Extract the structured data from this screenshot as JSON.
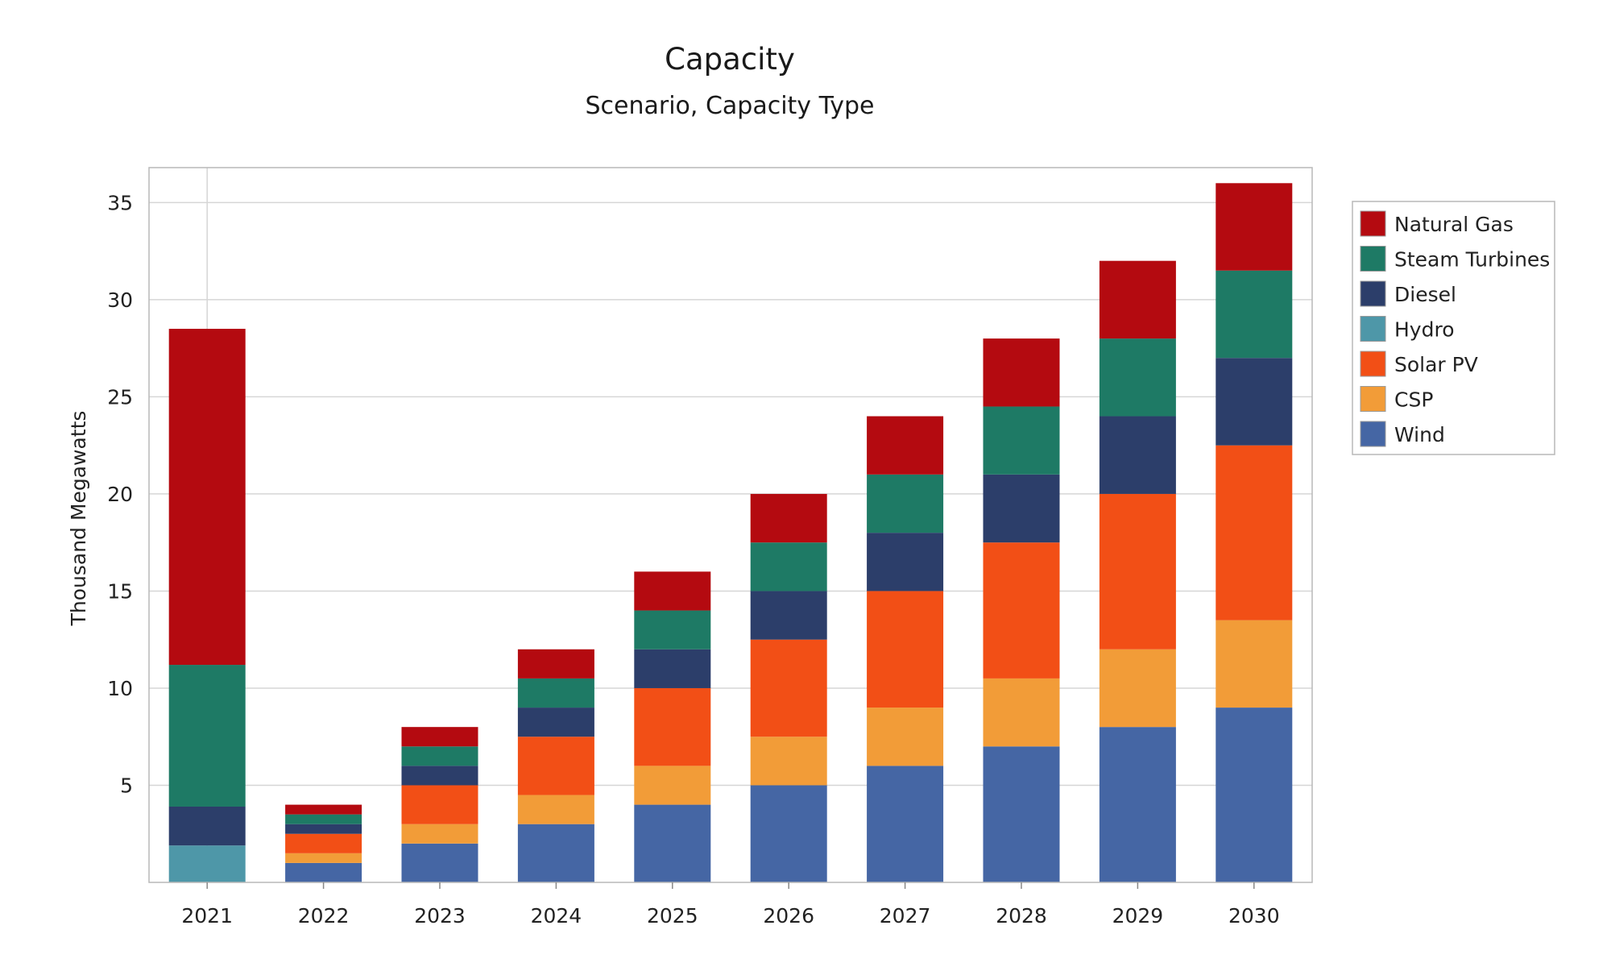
{
  "chart_data": {
    "type": "bar",
    "stacked": true,
    "title": "Capacity",
    "subtitle": "Scenario, Capacity Type",
    "xlabel": "",
    "ylabel": "Thousand Megawatts",
    "ylim": [
      0,
      36.8
    ],
    "yticks": [
      5,
      10,
      15,
      20,
      25,
      30,
      35
    ],
    "grid": true,
    "legend_position": "right",
    "categories": [
      "2021",
      "2022",
      "2023",
      "2024",
      "2025",
      "2026",
      "2027",
      "2028",
      "2029",
      "2030"
    ],
    "series": [
      {
        "name": "Wind",
        "color": "#4566a4",
        "values": [
          0,
          1,
          2,
          3,
          4,
          5,
          6,
          7,
          8,
          9
        ]
      },
      {
        "name": "CSP",
        "color": "#f29c38",
        "values": [
          0,
          0.5,
          1,
          1.5,
          2,
          2.5,
          3,
          3.5,
          4,
          4.5
        ]
      },
      {
        "name": "Solar PV",
        "color": "#f24f16",
        "values": [
          0,
          1,
          2,
          3,
          4,
          5,
          6,
          7,
          8,
          9
        ]
      },
      {
        "name": "Hydro",
        "color": "#4e97a8",
        "values": [
          1.9,
          0,
          0,
          0,
          0,
          0,
          0,
          0,
          0,
          0
        ]
      },
      {
        "name": "Diesel",
        "color": "#2c3e6a",
        "values": [
          2,
          0.5,
          1,
          1.5,
          2,
          2.5,
          3,
          3.5,
          4,
          4.5
        ]
      },
      {
        "name": "Steam Turbines",
        "color": "#1e7a65",
        "values": [
          7.3,
          0.5,
          1,
          1.5,
          2,
          2.5,
          3,
          3.5,
          4,
          4.5
        ]
      },
      {
        "name": "Natural Gas",
        "color": "#b40a10",
        "values": [
          17.3,
          0.5,
          1,
          1.5,
          2,
          2.5,
          3,
          3.5,
          4,
          4.5
        ]
      }
    ],
    "legend_order": [
      "Natural Gas",
      "Steam Turbines",
      "Diesel",
      "Hydro",
      "Solar PV",
      "CSP",
      "Wind"
    ]
  }
}
